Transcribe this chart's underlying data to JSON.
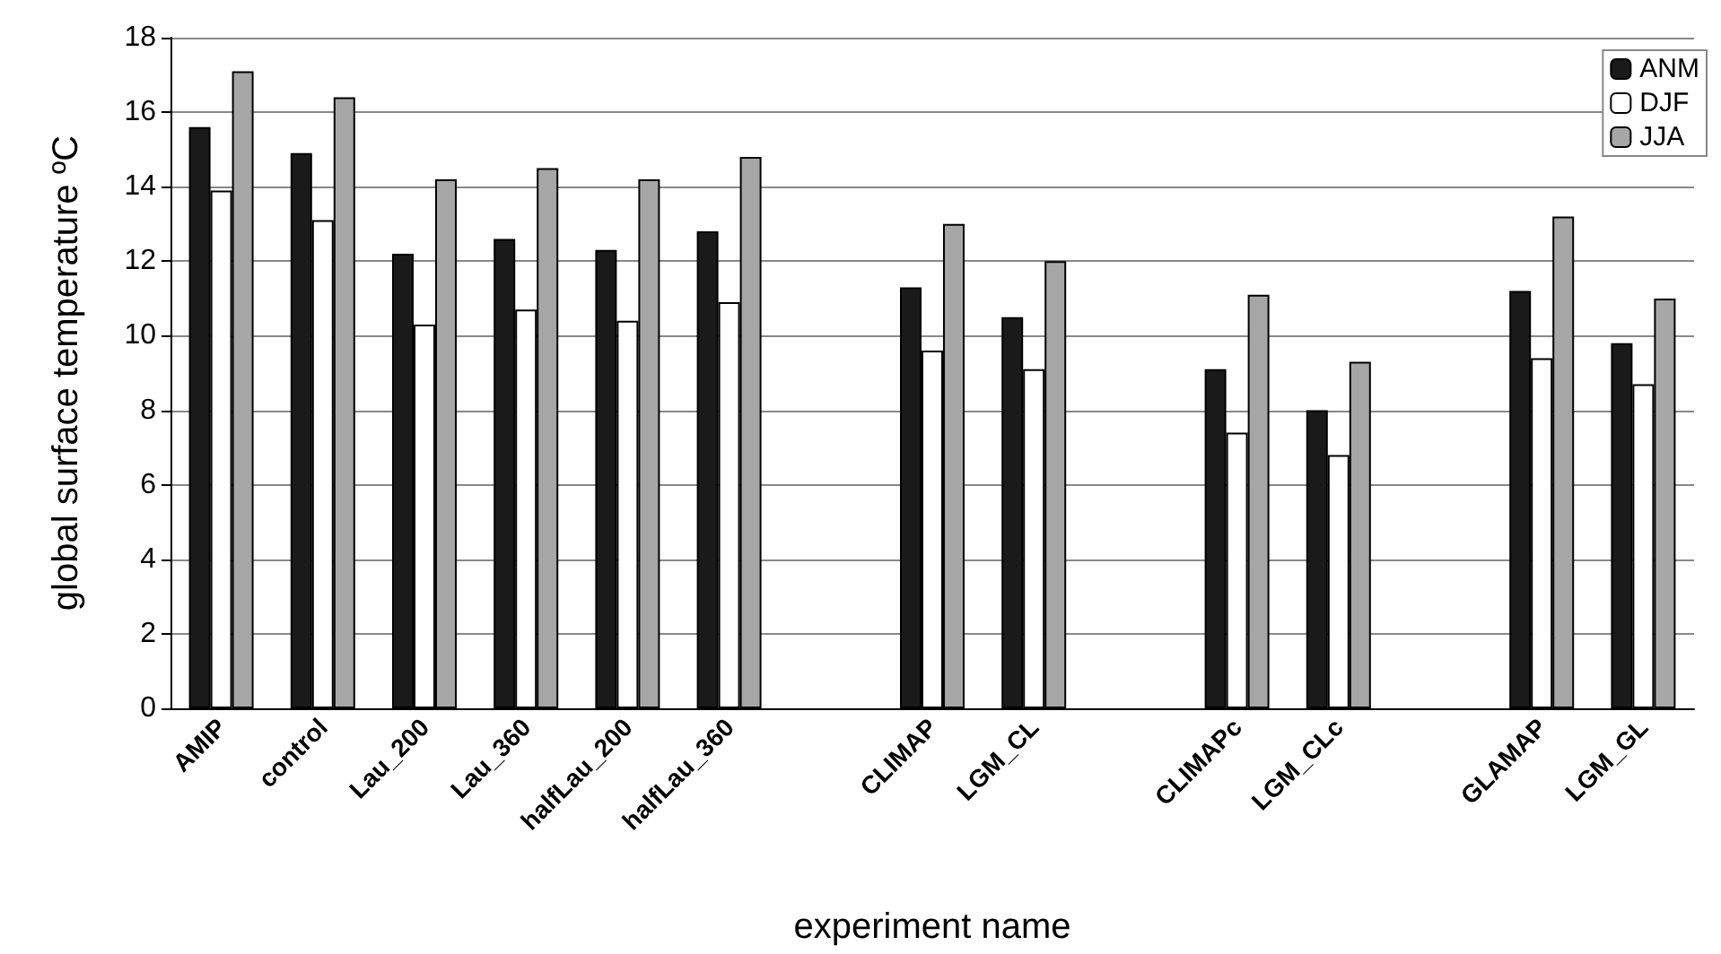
{
  "chart_data": {
    "type": "bar",
    "xlabel": "experiment name",
    "ylabel": "global surface temperature ºC",
    "categories": [
      "AMIP",
      "control",
      "Lau_200",
      "Lau_360",
      "halfLau_200",
      "halfLau_360",
      null,
      "CLIMAP",
      "LGM_CL",
      null,
      "CLIMAPc",
      "LGM_CLc",
      null,
      "GLAMAP",
      "LGM_GL"
    ],
    "series": [
      {
        "name": "ANM",
        "color": "#1a1a1a",
        "values": [
          15.6,
          14.9,
          12.2,
          12.6,
          12.3,
          12.8,
          null,
          11.3,
          10.5,
          null,
          9.1,
          8.0,
          null,
          11.2,
          9.8
        ]
      },
      {
        "name": "DJF",
        "color": "#ffffff",
        "values": [
          13.9,
          13.1,
          10.3,
          10.7,
          10.4,
          10.9,
          null,
          9.6,
          9.1,
          null,
          7.4,
          6.8,
          null,
          9.4,
          8.7
        ]
      },
      {
        "name": "JJA",
        "color": "#a6a6a6",
        "values": [
          17.1,
          16.4,
          14.2,
          14.5,
          14.2,
          14.8,
          null,
          13.0,
          12.0,
          null,
          11.1,
          9.3,
          null,
          13.2,
          11.0
        ]
      }
    ],
    "ylim": [
      0,
      18
    ],
    "yticks": [
      0,
      2,
      4,
      6,
      8,
      10,
      12,
      14,
      16,
      18
    ],
    "grid": "y",
    "legend": "top right"
  }
}
